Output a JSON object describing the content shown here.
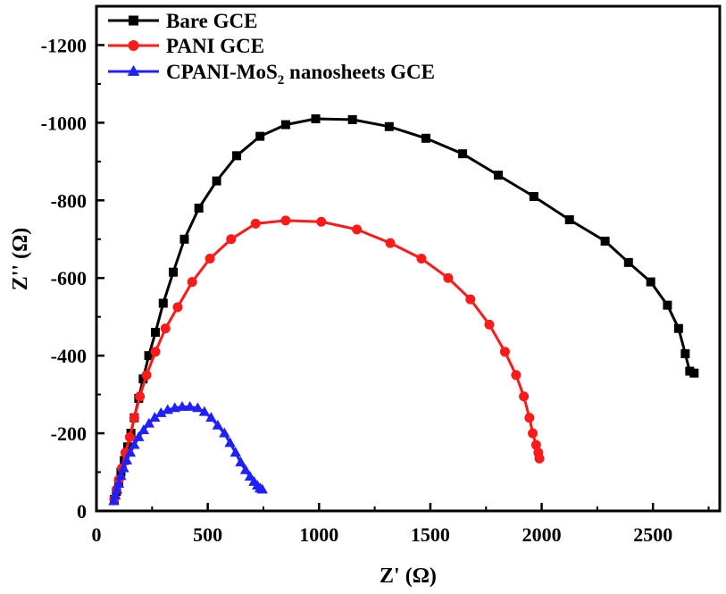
{
  "chart_data": {
    "type": "scatter",
    "title": "",
    "xlabel": "Z' (Ω)",
    "ylabel": "Z'' (Ω)",
    "xlim": [
      0,
      2800
    ],
    "ylim": [
      0,
      -1300
    ],
    "x_ticks": [
      "0",
      "500",
      "1000",
      "1500",
      "2000",
      "2500"
    ],
    "x_tick_values": [
      0,
      500,
      1000,
      1500,
      2000,
      2500
    ],
    "y_ticks": [
      "0",
      "-200",
      "-400",
      "-600",
      "-800",
      "-1000",
      "-1200"
    ],
    "y_tick_values": [
      0,
      -200,
      -400,
      -600,
      -800,
      -1000,
      -1200
    ],
    "grid": false,
    "legend_position": "top-left",
    "series": [
      {
        "name": "Bare GCE",
        "legend_main": "Bare GCE",
        "legend_sub": "",
        "legend_tail": "",
        "color": "#000000",
        "marker": "square",
        "x": [
          80,
          90,
          100,
          110,
          125,
          140,
          155,
          170,
          190,
          210,
          235,
          265,
          300,
          345,
          395,
          460,
          540,
          630,
          735,
          850,
          985,
          1150,
          1315,
          1480,
          1645,
          1805,
          1965,
          2125,
          2285,
          2390,
          2490,
          2565,
          2615,
          2645,
          2665,
          2685
        ],
        "y": [
          -30,
          -50,
          -75,
          -100,
          -130,
          -165,
          -200,
          -240,
          -290,
          -340,
          -400,
          -460,
          -535,
          -615,
          -700,
          -780,
          -850,
          -915,
          -965,
          -995,
          -1010,
          -1008,
          -990,
          -960,
          -920,
          -865,
          -810,
          -750,
          -695,
          -640,
          -590,
          -530,
          -470,
          -405,
          -360,
          -355
        ]
      },
      {
        "name": "PANI GCE",
        "legend_main": "PANI GCE",
        "legend_sub": "",
        "legend_tail": "",
        "color": "#ff1a1a",
        "marker": "circle",
        "x": [
          80,
          90,
          100,
          115,
          130,
          150,
          170,
          195,
          225,
          265,
          310,
          365,
          430,
          510,
          605,
          715,
          850,
          1010,
          1170,
          1320,
          1460,
          1580,
          1680,
          1765,
          1835,
          1885,
          1920,
          1945,
          1960,
          1975,
          1985,
          1990
        ],
        "y": [
          -30,
          -55,
          -80,
          -110,
          -150,
          -190,
          -240,
          -295,
          -350,
          -410,
          -470,
          -525,
          -590,
          -650,
          -700,
          -740,
          -748,
          -745,
          -725,
          -690,
          -650,
          -600,
          -545,
          -480,
          -410,
          -350,
          -295,
          -240,
          -200,
          -170,
          -150,
          -135
        ]
      },
      {
        "name": "CPANI-MoS₂ nanosheets GCE",
        "legend_main": "CPANI-MoS",
        "legend_sub": "2",
        "legend_tail": " nanosheets GCE",
        "color": "#1f1fff",
        "marker": "triangle",
        "x": [
          78,
          85,
          92,
          100,
          110,
          122,
          136,
          152,
          170,
          190,
          212,
          236,
          262,
          290,
          320,
          352,
          385,
          420,
          455,
          485,
          515,
          545,
          575,
          600,
          625,
          648,
          670,
          690,
          708,
          723,
          735,
          745
        ],
        "y": [
          -25,
          -40,
          -55,
          -70,
          -90,
          -110,
          -130,
          -150,
          -170,
          -190,
          -208,
          -225,
          -240,
          -252,
          -260,
          -265,
          -268,
          -268,
          -265,
          -255,
          -240,
          -220,
          -200,
          -175,
          -150,
          -125,
          -105,
          -88,
          -75,
          -65,
          -58,
          -55
        ]
      }
    ]
  }
}
